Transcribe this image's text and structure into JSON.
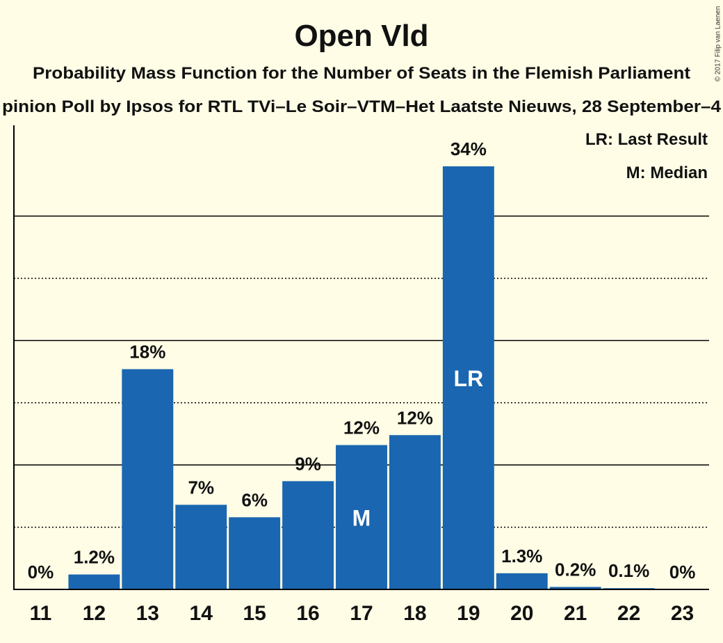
{
  "copyright": "© 2017 Filip van Laenen",
  "colors": {
    "background": "#fffde6",
    "bar": "#1a66b0",
    "marker_text": "#ffffff",
    "text": "#111111",
    "axis": "#000000"
  },
  "chart_data": {
    "type": "bar",
    "title": "Open Vld",
    "subtitle": "Probability Mass Function for the Number of Seats in the Flemish Parliament",
    "caption": "pinion Poll by Ipsos for RTL TVi–Le Soir–VTM–Het Laatste Nieuws, 28 September–4",
    "legend": [
      "LR: Last Result",
      "M: Median"
    ],
    "xlabel": "",
    "ylabel": "",
    "categories": [
      "11",
      "12",
      "13",
      "14",
      "15",
      "16",
      "17",
      "18",
      "19",
      "20",
      "21",
      "22",
      "23"
    ],
    "values": [
      0,
      1.2,
      17.7,
      6.8,
      5.8,
      8.7,
      11.6,
      12.4,
      34.0,
      1.3,
      0.2,
      0.1,
      0
    ],
    "data_labels": [
      "0%",
      "1.2%",
      "18%",
      "7%",
      "6%",
      "9%",
      "12%",
      "12%",
      "34%",
      "1.3%",
      "0.2%",
      "0.1%",
      "0%"
    ],
    "markers": [
      {
        "category": "17",
        "label": "M"
      },
      {
        "category": "19",
        "label": "LR"
      }
    ],
    "ylim": [
      0,
      37.3
    ],
    "gridlines": {
      "solid": [
        10,
        20,
        30
      ],
      "dotted": [
        5,
        15,
        25
      ]
    }
  }
}
